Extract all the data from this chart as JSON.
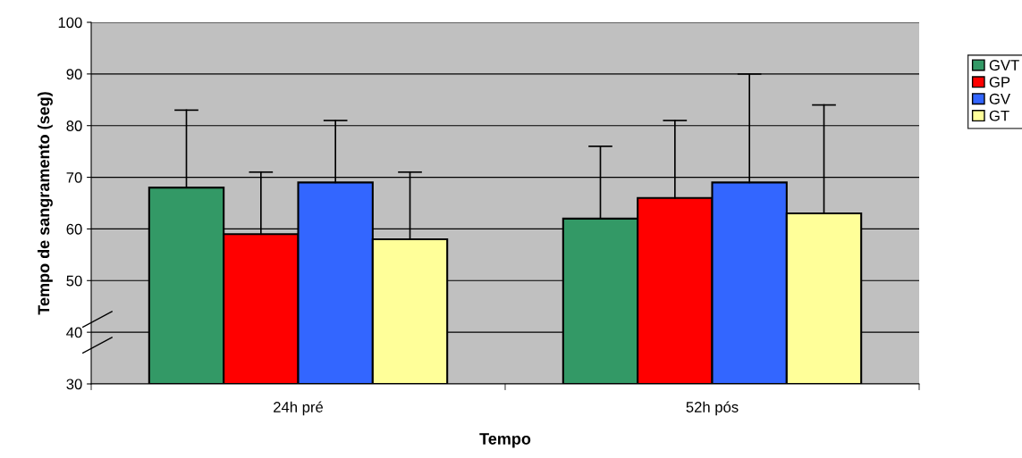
{
  "chart_data": {
    "type": "bar",
    "xlabel": "Tempo",
    "ylabel": "Tempo de sangramento (seg)",
    "categories": [
      "24h pré",
      "52h pós"
    ],
    "series": [
      {
        "name": "GVT",
        "color": "#339966",
        "values": [
          68,
          62
        ],
        "errors": [
          [
            68,
            83
          ],
          [
            62,
            76
          ]
        ]
      },
      {
        "name": "GP",
        "color": "#ff0000",
        "values": [
          59,
          66
        ],
        "errors": [
          [
            59,
            71
          ],
          [
            66,
            81
          ]
        ]
      },
      {
        "name": "GV",
        "color": "#3366ff",
        "values": [
          69,
          69
        ],
        "errors": [
          [
            69,
            81
          ],
          [
            69,
            90
          ]
        ]
      },
      {
        "name": "GT",
        "color": "#ffff99",
        "values": [
          58,
          63
        ],
        "errors": [
          [
            58,
            71
          ],
          [
            63,
            84
          ]
        ]
      }
    ],
    "ylim": [
      30,
      100
    ],
    "yticks": [
      30,
      40,
      50,
      60,
      70,
      80,
      90,
      100
    ],
    "grid": "y",
    "legend": "top right"
  }
}
